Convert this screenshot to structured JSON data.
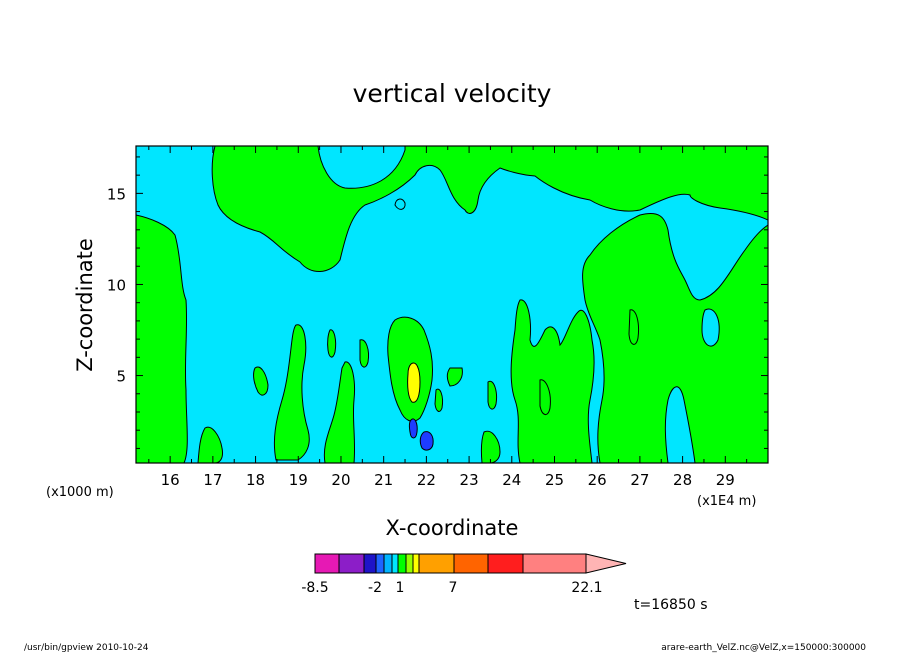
{
  "chart_data": {
    "type": "contour",
    "title": "vertical velocity",
    "xlabel": "X-coordinate",
    "ylabel": "Z-coordinate",
    "x_unit": "(x1E4 m)",
    "y_unit": "(x1000 m)",
    "xlim": [
      15.2,
      30.0
    ],
    "ylim": [
      0.2,
      17.6
    ],
    "x_ticks": [
      "16",
      "17",
      "18",
      "19",
      "20",
      "21",
      "22",
      "23",
      "24",
      "25",
      "26",
      "27",
      "28",
      "29"
    ],
    "y_ticks": [
      "5",
      "10",
      "15"
    ],
    "x_tick_values": [
      16,
      17,
      18,
      19,
      20,
      21,
      22,
      23,
      24,
      25,
      26,
      27,
      28,
      29
    ],
    "y_tick_values": [
      5,
      10,
      15
    ],
    "background_level_color": "#00e6ff",
    "level_colors": {
      "updraft": "#00ff00",
      "strong_updraft": "#ffff00",
      "downdraft": "#1e3cff"
    },
    "features": [
      {
        "level": "strong_updraft",
        "x": 21.5,
        "y": 4.7
      },
      {
        "level": "downdraft",
        "x": 21.45,
        "y": 2.2
      },
      {
        "level": "downdraft",
        "x": 21.85,
        "y": 1.4
      }
    ],
    "colorbar": {
      "labels": [
        "-8.5",
        "-2",
        "1",
        "7",
        "22.1"
      ],
      "colors": [
        "#e619b4",
        "#8c1ec8",
        "#1e14c8",
        "#1e64ff",
        "#00b4ff",
        "#00e6ff",
        "#00ff00",
        "#96ff00",
        "#ffff00",
        "#ffa000",
        "#ff6400",
        "#ff1e1e",
        "#ff8080",
        "#ffb4b4"
      ]
    },
    "time_label": "t=16850 s"
  },
  "footer": {
    "left": "/usr/bin/gpview   2010-10-24",
    "right": "arare-earth_VelZ.nc@VelZ,x=150000:300000"
  }
}
